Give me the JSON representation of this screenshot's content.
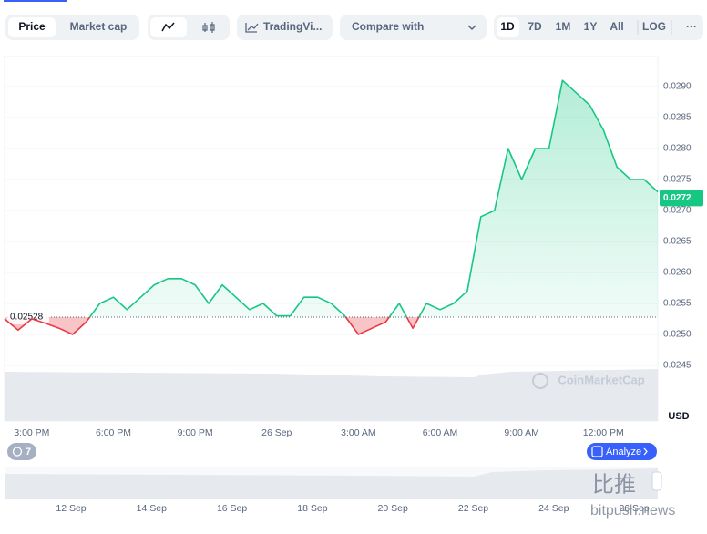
{
  "toolbar": {
    "price": "Price",
    "market_cap": "Market cap",
    "tradingview": "TradingVi...",
    "compare": "Compare with",
    "ranges": [
      "1D",
      "7D",
      "1M",
      "1Y",
      "All"
    ],
    "log": "LOG",
    "more": "···"
  },
  "badge": "7",
  "analyze": "Analyze",
  "navigator": {
    "dates": [
      "12 Sep",
      "14 Sep",
      "16 Sep",
      "18 Sep",
      "20 Sep",
      "22 Sep",
      "24 Sep",
      "26 Sep"
    ]
  },
  "watermark": {
    "cn": "比推",
    "site": "bitpush.news"
  },
  "chart_data": {
    "type": "line",
    "watermark": "CoinMarketCap",
    "currency": "USD",
    "categories": [
      null,
      null,
      "3:00 PM",
      null,
      null,
      null,
      null,
      null,
      "6:00 PM",
      null,
      null,
      null,
      null,
      null,
      "9:00 PM",
      null,
      null,
      null,
      null,
      null,
      "26 Sep",
      null,
      null,
      null,
      null,
      null,
      "3:00 AM",
      null,
      null,
      null,
      null,
      null,
      "6:00 AM",
      null,
      null,
      null,
      null,
      null,
      "9:00 AM",
      null,
      null,
      null,
      null,
      null,
      "12:00 PM",
      null,
      null,
      null,
      null
    ],
    "values": [
      0.02525,
      0.02507,
      0.02525,
      0.02518,
      0.0251,
      0.025,
      0.0252,
      0.0255,
      0.0256,
      0.0254,
      0.0256,
      0.0258,
      0.0259,
      0.0259,
      0.0258,
      0.0255,
      0.0258,
      0.0256,
      0.0254,
      0.0255,
      0.0253,
      0.0253,
      0.0256,
      0.0256,
      0.0255,
      0.0253,
      0.025,
      0.0251,
      0.0252,
      0.0255,
      0.0251,
      0.0255,
      0.0254,
      0.0255,
      0.0257,
      0.0269,
      0.027,
      0.028,
      0.0275,
      0.028,
      0.028,
      0.0291,
      0.0289,
      0.0287,
      0.0283,
      0.0277,
      0.0275,
      0.0275,
      0.0273
    ],
    "color": "#16c784",
    "down_color": "#ea3943",
    "baseline": 0.02528,
    "last_price": 0.0272,
    "ylim": [
      0.0244,
      0.0295
    ],
    "yticks": [
      {
        "value": 0.029,
        "label": "0.0290"
      },
      0.0285,
      {
        "value": 0.028,
        "label": "0.0280"
      },
      0.0275,
      {
        "value": 0.027,
        "label": "0.0270"
      },
      0.0265,
      {
        "value": 0.026,
        "label": "0.0260"
      },
      0.0255,
      {
        "value": 0.025,
        "label": "0.0250"
      },
      0.0245
    ],
    "grid": true
  }
}
